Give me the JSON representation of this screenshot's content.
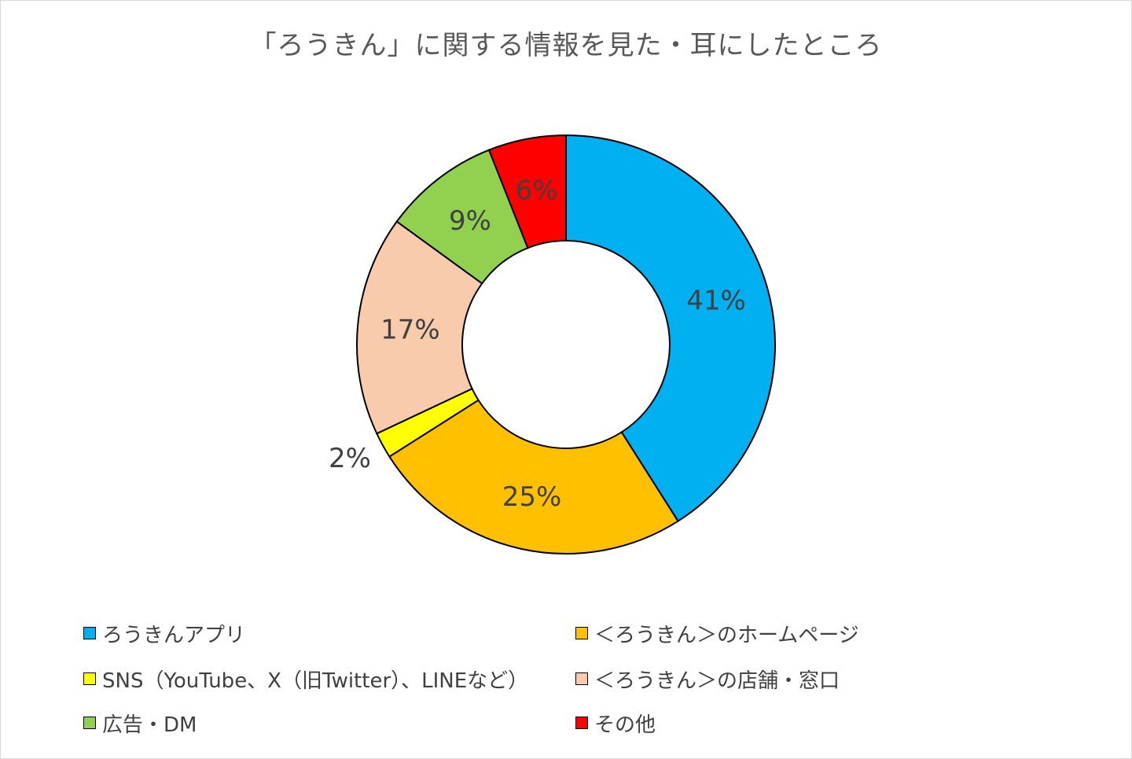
{
  "chart_data": {
    "type": "pie",
    "title": "「ろうきん」に関する情報を見た・耳にしたところ",
    "categories": [
      "ろうきんアプリ",
      "＜ろうきん＞のホームページ",
      "SNS（YouTube、X（旧Twitter）、LINEなど）",
      "＜ろうきん＞の店舗・窓口",
      "広告・DM",
      "その他"
    ],
    "values": [
      41,
      25,
      2,
      17,
      9,
      6
    ],
    "value_labels": [
      "41%",
      "25%",
      "2%",
      "17%",
      "9%",
      "6%"
    ],
    "colors": [
      "#00b0f0",
      "#ffc000",
      "#ffff00",
      "#f8cbad",
      "#92d050",
      "#ff0000"
    ],
    "legend_position": "bottom",
    "donut": true
  }
}
